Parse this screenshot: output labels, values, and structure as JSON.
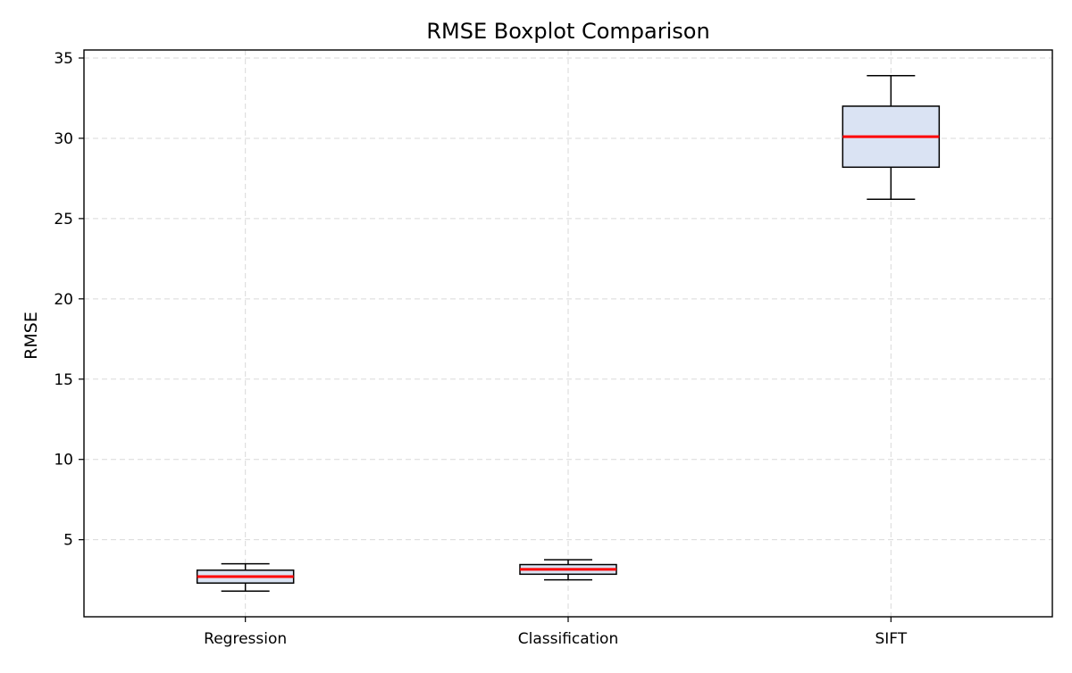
{
  "chart_data": {
    "type": "boxplot",
    "title": "RMSE Boxplot Comparison",
    "xlabel": "",
    "ylabel": "RMSE",
    "ylim": [
      0.2,
      35.5
    ],
    "yticks": [
      5,
      10,
      15,
      20,
      25,
      30,
      35
    ],
    "grid": true,
    "categories": [
      "Regression",
      "Classification",
      "SIFT"
    ],
    "boxes": [
      {
        "label": "Regression",
        "whisker_low": 1.8,
        "q1": 2.3,
        "median": 2.7,
        "q3": 3.1,
        "whisker_high": 3.5
      },
      {
        "label": "Classification",
        "whisker_low": 2.5,
        "q1": 2.85,
        "median": 3.15,
        "q3": 3.45,
        "whisker_high": 3.75
      },
      {
        "label": "SIFT",
        "whisker_low": 26.2,
        "q1": 28.2,
        "median": 30.1,
        "q3": 32.0,
        "whisker_high": 33.9
      }
    ],
    "colors": {
      "box_fill": "#dae3f3",
      "box_edge": "#000000",
      "median": "#ff0000",
      "grid": "#d9d9d9",
      "axis": "#000000"
    }
  }
}
